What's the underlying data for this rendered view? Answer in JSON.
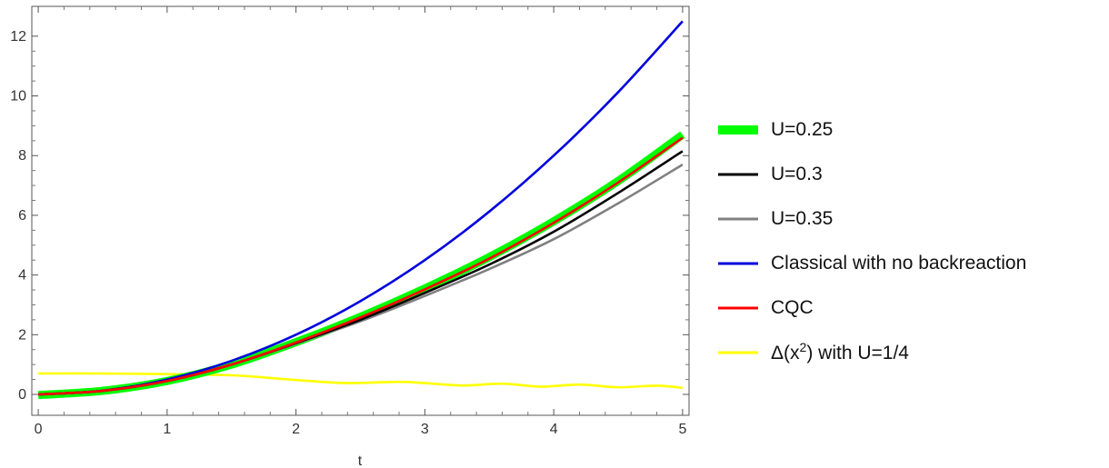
{
  "chart_data": {
    "type": "line",
    "title": "",
    "xlabel": "t",
    "ylabel": "",
    "xlim": [
      -0.05,
      5.05
    ],
    "ylim": [
      -0.7,
      13.0
    ],
    "xticks": [
      0,
      1,
      2,
      3,
      4,
      5
    ],
    "yticks": [
      0,
      2,
      4,
      6,
      8,
      10,
      12
    ],
    "grid": false,
    "legend_position": "right",
    "series": [
      {
        "name": "U=0.25",
        "color": "#00ff00",
        "line_width_class": "thick",
        "x": [
          0,
          0.5,
          1,
          1.5,
          2,
          2.5,
          3,
          3.5,
          4,
          4.5,
          5
        ],
        "y": [
          -0.02,
          0.12,
          0.45,
          1.0,
          1.75,
          2.6,
          3.55,
          4.6,
          5.8,
          7.15,
          8.7
        ]
      },
      {
        "name": "U=0.3",
        "color": "#000000",
        "line_width_class": "normal",
        "x": [
          0,
          0.5,
          1,
          1.5,
          2,
          2.5,
          3,
          3.5,
          4,
          4.5,
          5
        ],
        "y": [
          0.0,
          0.12,
          0.45,
          1.0,
          1.72,
          2.5,
          3.4,
          4.35,
          5.45,
          6.75,
          8.15
        ]
      },
      {
        "name": "U=0.35",
        "color": "#808080",
        "line_width_class": "normal",
        "x": [
          0,
          0.5,
          1,
          1.5,
          2,
          2.5,
          3,
          3.5,
          4,
          4.5,
          5
        ],
        "y": [
          0.0,
          0.12,
          0.45,
          1.0,
          1.7,
          2.45,
          3.3,
          4.2,
          5.2,
          6.4,
          7.7
        ]
      },
      {
        "name": "Classical with no backreaction",
        "color": "#0000dd",
        "line_width_class": "normal",
        "x": [
          0,
          0.5,
          1,
          1.5,
          2,
          2.5,
          3,
          3.5,
          4,
          4.5,
          5
        ],
        "y": [
          0.0,
          0.125,
          0.5,
          1.125,
          2.0,
          3.125,
          4.5,
          6.125,
          8.0,
          10.125,
          12.5
        ]
      },
      {
        "name": "CQC",
        "color": "#ff0000",
        "line_width_class": "normal",
        "x": [
          0,
          0.5,
          1,
          1.5,
          2,
          2.5,
          3,
          3.5,
          4,
          4.5,
          5
        ],
        "y": [
          0.0,
          0.12,
          0.45,
          1.0,
          1.74,
          2.58,
          3.52,
          4.55,
          5.75,
          7.1,
          8.6
        ]
      },
      {
        "name": "Δ(x²) with U=1/4",
        "color": "#ffff00",
        "line_width_class": "normal",
        "x": [
          0,
          0.5,
          1,
          1.5,
          1.8,
          2.1,
          2.4,
          2.8,
          3.0,
          3.3,
          3.6,
          3.9,
          4.2,
          4.5,
          4.8,
          5.0
        ],
        "y": [
          0.7,
          0.7,
          0.68,
          0.64,
          0.55,
          0.45,
          0.38,
          0.42,
          0.38,
          0.3,
          0.36,
          0.26,
          0.33,
          0.24,
          0.29,
          0.22
        ]
      }
    ]
  },
  "legend": {
    "items": [
      {
        "label": "U=0.25",
        "color": "#00ff00"
      },
      {
        "label": "U=0.3",
        "color": "#000000"
      },
      {
        "label": "U=0.35",
        "color": "#808080"
      },
      {
        "label": "Classical with no backreaction",
        "color": "#0000dd"
      },
      {
        "label": "CQC",
        "color": "#ff0000"
      },
      {
        "label_prefix": "Δ(x",
        "label_sup": "2",
        "label_suffix": ") with U=1/4",
        "color": "#ffff00"
      }
    ]
  }
}
